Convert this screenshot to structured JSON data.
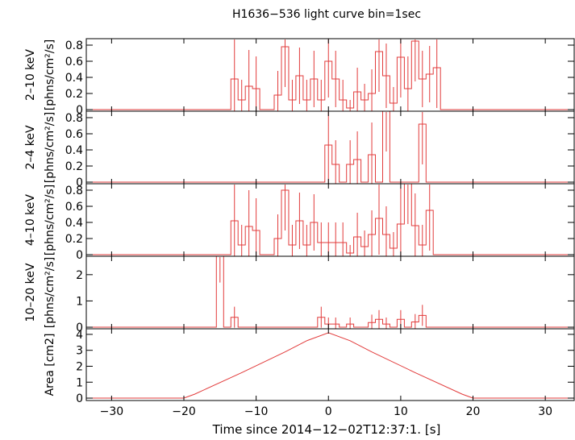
{
  "chart_data": {
    "type": "step",
    "title": "H1636−536 light curve bin=1sec",
    "xlabel": "Time since 2014−12−02T12:37:1. [s]",
    "xlim": [
      -33.5,
      34
    ],
    "xticks": [
      -30,
      -20,
      -10,
      0,
      10,
      20,
      30
    ],
    "xtick_labels": [
      "−30",
      "−20",
      "−10",
      "0",
      "10",
      "20",
      "30"
    ],
    "panels": [
      {
        "id": "p1",
        "band": "2–10 keV",
        "unit": "[phns/cm²/s]",
        "ylim": [
          -0.02,
          0.88
        ],
        "yticks": [
          0,
          0.2,
          0.4,
          0.6,
          0.8
        ],
        "ytick_labels": [
          "0",
          "0.2",
          "0.4",
          "0.6",
          "0.8"
        ],
        "bins": [
          {
            "x": -13,
            "y": 0.38,
            "err": 0.5
          },
          {
            "x": -12,
            "y": 0.12,
            "err": 0.25
          },
          {
            "x": -11,
            "y": 0.29,
            "err": 0.45
          },
          {
            "x": -10,
            "y": 0.26,
            "err": 0.4
          },
          {
            "x": -7,
            "y": 0.18,
            "err": 0.3
          },
          {
            "x": -6,
            "y": 0.78,
            "err": 0.5
          },
          {
            "x": -5,
            "y": 0.12,
            "err": 0.25
          },
          {
            "x": -4,
            "y": 0.42,
            "err": 0.35
          },
          {
            "x": -3,
            "y": 0.12,
            "err": 0.25
          },
          {
            "x": -2,
            "y": 0.38,
            "err": 0.35
          },
          {
            "x": -1,
            "y": 0.12,
            "err": 0.25
          },
          {
            "x": 0,
            "y": 0.6,
            "err": 0.45
          },
          {
            "x": 1,
            "y": 0.38,
            "err": 0.35
          },
          {
            "x": 2,
            "y": 0.12,
            "err": 0.25
          },
          {
            "x": 3,
            "y": 0.02,
            "err": 0.1
          },
          {
            "x": 4,
            "y": 0.22,
            "err": 0.3
          },
          {
            "x": 5,
            "y": 0.12,
            "err": 0.2
          },
          {
            "x": 6,
            "y": 0.2,
            "err": 0.3
          },
          {
            "x": 7,
            "y": 0.72,
            "err": 0.5
          },
          {
            "x": 8,
            "y": 0.42,
            "err": 0.4
          },
          {
            "x": 9,
            "y": 0.08,
            "err": 0.2
          },
          {
            "x": 10,
            "y": 0.65,
            "err": 0.5
          },
          {
            "x": 11,
            "y": 0.26,
            "err": 0.4
          },
          {
            "x": 12,
            "y": 0.85,
            "err": 0.5
          },
          {
            "x": 13,
            "y": 0.38,
            "err": 0.35
          },
          {
            "x": 14,
            "y": 0.44,
            "err": 0.35
          },
          {
            "x": 15,
            "y": 0.52,
            "err": 0.5
          }
        ]
      },
      {
        "id": "p2",
        "band": "2–4 keV",
        "unit": "[phns/cm²/s]",
        "ylim": [
          -0.02,
          0.88
        ],
        "yticks": [
          0,
          0.2,
          0.4,
          0.6,
          0.8
        ],
        "ytick_labels": [
          "0",
          "0.2",
          "0.4",
          "0.6",
          "0.8"
        ],
        "bins": [
          {
            "x": 0,
            "y": 0.46,
            "err": 0.5
          },
          {
            "x": 1,
            "y": 0.22,
            "err": 0.3
          },
          {
            "x": 3,
            "y": 0.22,
            "err": 0.3
          },
          {
            "x": 4,
            "y": 0.28,
            "err": 0.35
          },
          {
            "x": 6,
            "y": 0.34,
            "err": 0.4
          },
          {
            "x": 8,
            "y": 0.88,
            "err": 0.5
          },
          {
            "x": 13,
            "y": 0.72,
            "err": 0.5
          }
        ]
      },
      {
        "id": "p3",
        "band": "4–10 keV",
        "unit": "[phns/cm²/s]",
        "ylim": [
          -0.02,
          0.88
        ],
        "yticks": [
          0,
          0.2,
          0.4,
          0.6,
          0.8
        ],
        "ytick_labels": [
          "0",
          "0.2",
          "0.4",
          "0.6",
          "0.8"
        ],
        "bins": [
          {
            "x": -13,
            "y": 0.42,
            "err": 0.5
          },
          {
            "x": -12,
            "y": 0.12,
            "err": 0.25
          },
          {
            "x": -11,
            "y": 0.35,
            "err": 0.45
          },
          {
            "x": -10,
            "y": 0.3,
            "err": 0.4
          },
          {
            "x": -7,
            "y": 0.2,
            "err": 0.3
          },
          {
            "x": -6,
            "y": 0.8,
            "err": 0.5
          },
          {
            "x": -5,
            "y": 0.12,
            "err": 0.25
          },
          {
            "x": -4,
            "y": 0.42,
            "err": 0.35
          },
          {
            "x": -3,
            "y": 0.12,
            "err": 0.25
          },
          {
            "x": -2,
            "y": 0.4,
            "err": 0.35
          },
          {
            "x": -1,
            "y": 0.15,
            "err": 0.25
          },
          {
            "x": 0,
            "y": 0.15,
            "err": 0.25
          },
          {
            "x": 1,
            "y": 0.15,
            "err": 0.25
          },
          {
            "x": 2,
            "y": 0.15,
            "err": 0.25
          },
          {
            "x": 3,
            "y": 0.02,
            "err": 0.1
          },
          {
            "x": 4,
            "y": 0.22,
            "err": 0.3
          },
          {
            "x": 5,
            "y": 0.1,
            "err": 0.2
          },
          {
            "x": 6,
            "y": 0.25,
            "err": 0.3
          },
          {
            "x": 7,
            "y": 0.45,
            "err": 0.45
          },
          {
            "x": 8,
            "y": 0.25,
            "err": 0.35
          },
          {
            "x": 9,
            "y": 0.08,
            "err": 0.2
          },
          {
            "x": 10,
            "y": 0.38,
            "err": 0.45
          },
          {
            "x": 11,
            "y": 0.88,
            "err": 0.5
          },
          {
            "x": 12,
            "y": 0.36,
            "err": 0.4
          },
          {
            "x": 13,
            "y": 0.12,
            "err": 0.25
          },
          {
            "x": 14,
            "y": 0.55,
            "err": 0.5
          }
        ]
      },
      {
        "id": "p4",
        "band": "10–20 keV",
        "unit": "[phns/cm²/s]",
        "ylim": [
          -0.06,
          2.7
        ],
        "yticks": [
          0,
          1,
          2
        ],
        "ytick_labels": [
          "0",
          "1",
          "2"
        ],
        "bins": [
          {
            "x": -15,
            "y": 2.7,
            "err": 1.0
          },
          {
            "x": -13,
            "y": 0.38,
            "err": 0.4
          },
          {
            "x": -1,
            "y": 0.38,
            "err": 0.4
          },
          {
            "x": 0,
            "y": 0.12,
            "err": 0.25
          },
          {
            "x": 1,
            "y": 0.12,
            "err": 0.25
          },
          {
            "x": 3,
            "y": 0.12,
            "err": 0.25
          },
          {
            "x": 6,
            "y": 0.18,
            "err": 0.3
          },
          {
            "x": 7,
            "y": 0.3,
            "err": 0.35
          },
          {
            "x": 8,
            "y": 0.12,
            "err": 0.25
          },
          {
            "x": 10,
            "y": 0.3,
            "err": 0.35
          },
          {
            "x": 12,
            "y": 0.2,
            "err": 0.3
          },
          {
            "x": 13,
            "y": 0.45,
            "err": 0.4
          }
        ]
      },
      {
        "id": "p5",
        "band": "Area [cm2]",
        "unit": "",
        "ylim": [
          -0.15,
          4.35
        ],
        "yticks": [
          0,
          1,
          2,
          3,
          4
        ],
        "ytick_labels": [
          "0",
          "1",
          "2",
          "3",
          "4"
        ],
        "curve": {
          "x": [
            -33.5,
            -20,
            -18.5,
            -12,
            -6,
            -3,
            0,
            3,
            6,
            12,
            18.5,
            20,
            34
          ],
          "y": [
            0,
            0,
            0.25,
            1.6,
            2.9,
            3.6,
            4.1,
            3.6,
            2.9,
            1.6,
            0.25,
            0,
            0
          ]
        }
      }
    ]
  }
}
